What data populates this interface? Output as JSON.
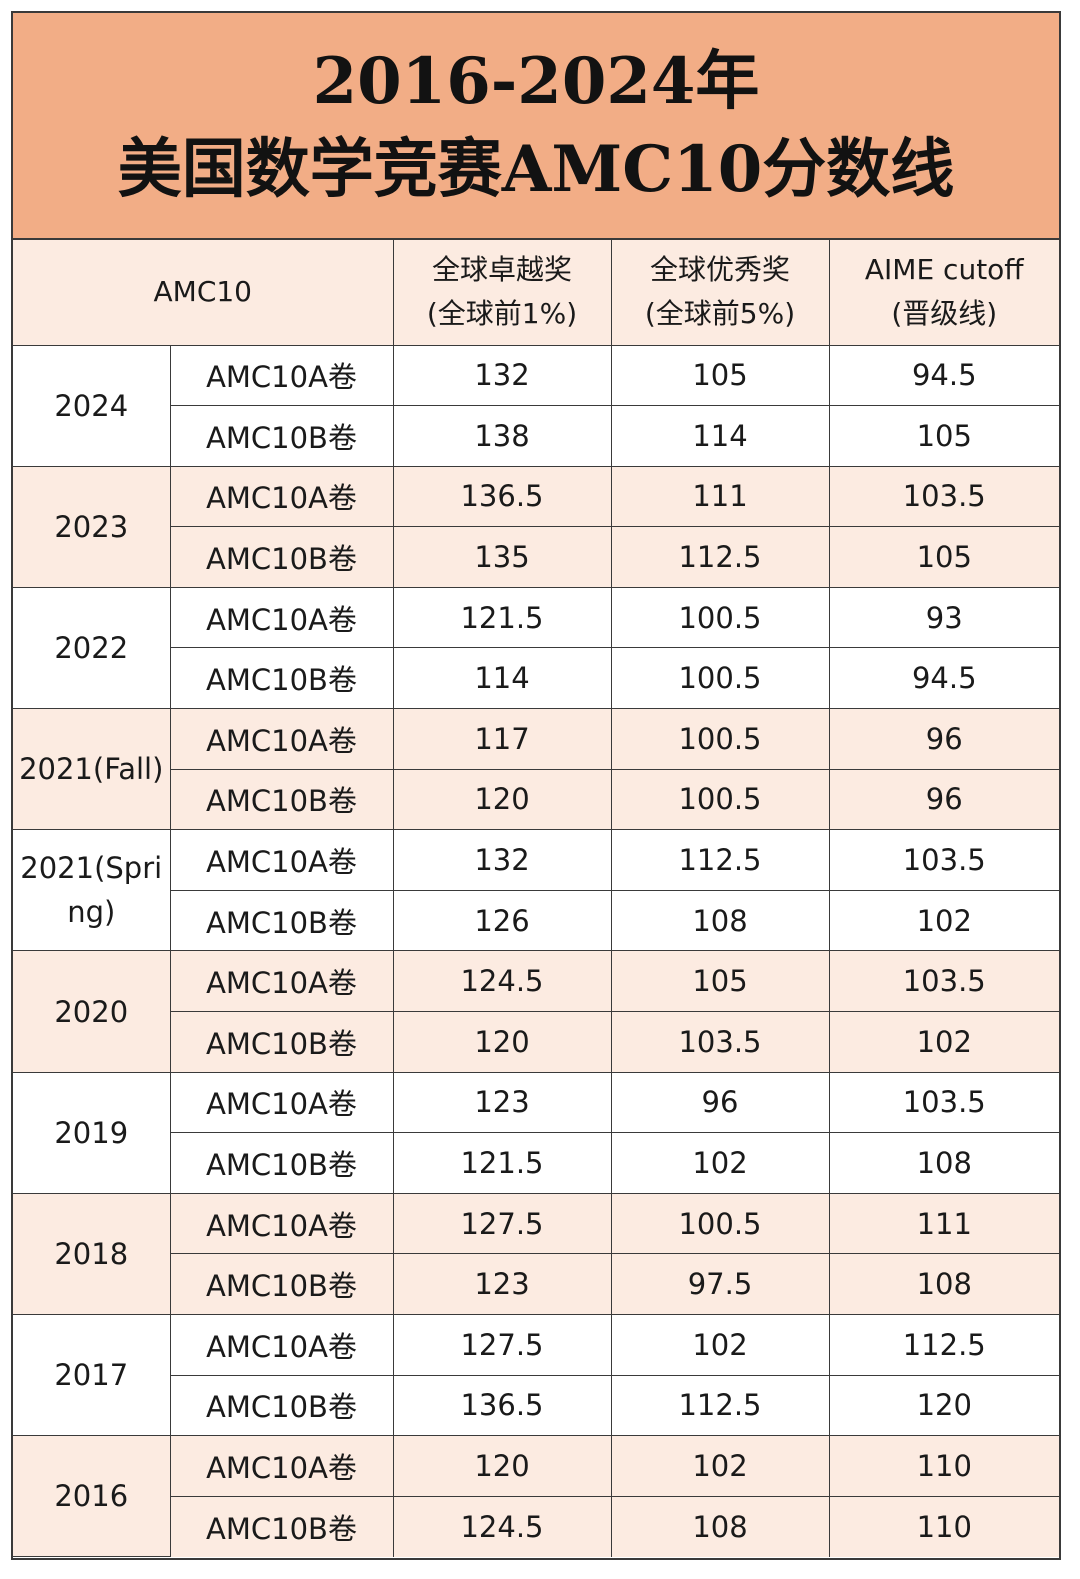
{
  "title": {
    "line1": "2016-2024年",
    "line2": "美国数学竞赛AMC10分数线"
  },
  "columns": {
    "group": "AMC10",
    "col1_line1": "全球卓越奖",
    "col1_line2": "(全球前1%)",
    "col2_line1": "全球优秀奖",
    "col2_line2": "(全球前5%)",
    "col3_line1": "AIME cutoff",
    "col3_line2": "(晋级线)"
  },
  "rows": [
    {
      "year": "2024",
      "a": {
        "paper": "AMC10A卷",
        "v1": "132",
        "v2": "105",
        "v3": "94.5"
      },
      "b": {
        "paper": "AMC10B卷",
        "v1": "138",
        "v2": "114",
        "v3": "105"
      }
    },
    {
      "year": "2023",
      "a": {
        "paper": "AMC10A卷",
        "v1": "136.5",
        "v2": "111",
        "v3": "103.5"
      },
      "b": {
        "paper": "AMC10B卷",
        "v1": "135",
        "v2": "112.5",
        "v3": "105"
      }
    },
    {
      "year": "2022",
      "a": {
        "paper": "AMC10A卷",
        "v1": "121.5",
        "v2": "100.5",
        "v3": "93"
      },
      "b": {
        "paper": "AMC10B卷",
        "v1": "114",
        "v2": "100.5",
        "v3": "94.5"
      }
    },
    {
      "year": "2021(Fall)",
      "a": {
        "paper": "AMC10A卷",
        "v1": "117",
        "v2": "100.5",
        "v3": "96"
      },
      "b": {
        "paper": "AMC10B卷",
        "v1": "120",
        "v2": "100.5",
        "v3": "96"
      }
    },
    {
      "year": "2021(Spring)",
      "a": {
        "paper": "AMC10A卷",
        "v1": "132",
        "v2": "112.5",
        "v3": "103.5"
      },
      "b": {
        "paper": "AMC10B卷",
        "v1": "126",
        "v2": "108",
        "v3": "102"
      }
    },
    {
      "year": "2020",
      "a": {
        "paper": "AMC10A卷",
        "v1": "124.5",
        "v2": "105",
        "v3": "103.5"
      },
      "b": {
        "paper": "AMC10B卷",
        "v1": "120",
        "v2": "103.5",
        "v3": "102"
      }
    },
    {
      "year": "2019",
      "a": {
        "paper": "AMC10A卷",
        "v1": "123",
        "v2": "96",
        "v3": "103.5"
      },
      "b": {
        "paper": "AMC10B卷",
        "v1": "121.5",
        "v2": "102",
        "v3": "108"
      }
    },
    {
      "year": "2018",
      "a": {
        "paper": "AMC10A卷",
        "v1": "127.5",
        "v2": "100.5",
        "v3": "111"
      },
      "b": {
        "paper": "AMC10B卷",
        "v1": "123",
        "v2": "97.5",
        "v3": "108"
      }
    },
    {
      "year": "2017",
      "a": {
        "paper": "AMC10A卷",
        "v1": "127.5",
        "v2": "102",
        "v3": "112.5"
      },
      "b": {
        "paper": "AMC10B卷",
        "v1": "136.5",
        "v2": "112.5",
        "v3": "120"
      }
    },
    {
      "year": "2016",
      "a": {
        "paper": "AMC10A卷",
        "v1": "120",
        "v2": "102",
        "v3": "110"
      },
      "b": {
        "paper": "AMC10B卷",
        "v1": "124.5",
        "v2": "108",
        "v3": "110"
      }
    }
  ],
  "colors": {
    "title_bg": "#f2ad86",
    "alt_row_bg": "#fcebe1",
    "border": "#3a3a3a"
  }
}
